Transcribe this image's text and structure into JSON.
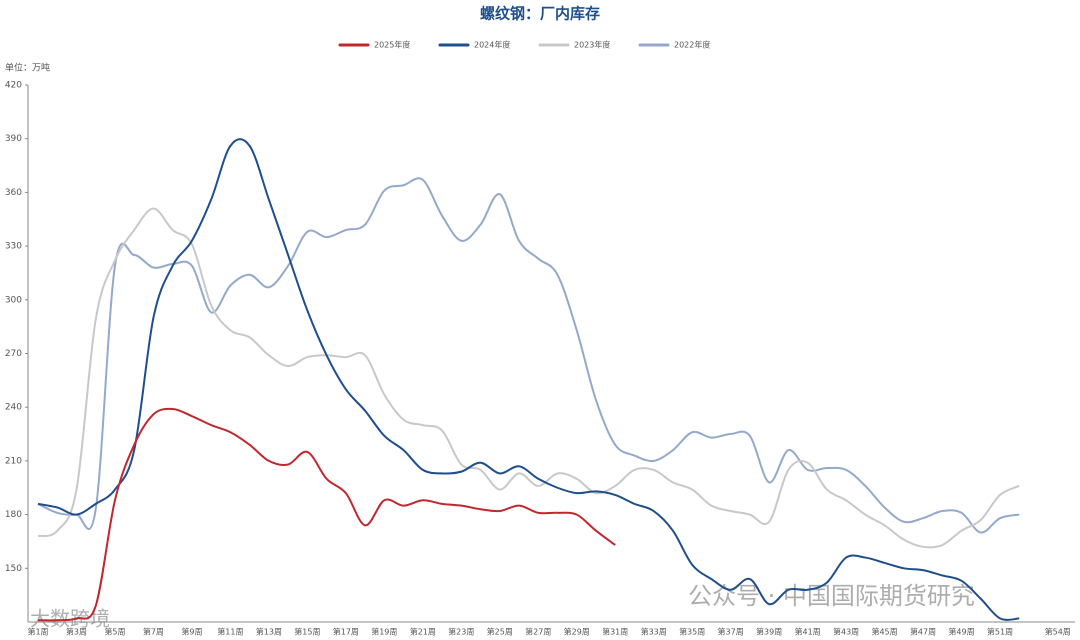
{
  "chart_data": {
    "type": "line",
    "title": "螺纹钢：厂内库存",
    "unit_label": "单位：万吨",
    "annotations": [
      "公众号 · 中国国际期货研究",
      "大数跨境"
    ],
    "categories": [
      "第1周",
      null,
      "第3周",
      null,
      "第5周",
      null,
      "第7周",
      null,
      "第9周",
      null,
      "第11周",
      null,
      "第13周",
      null,
      "第15周",
      null,
      "第17周",
      null,
      "第19周",
      null,
      "第21周",
      null,
      "第23周",
      null,
      "第25周",
      null,
      "第27周",
      null,
      "第29周",
      null,
      "第31周",
      null,
      "第33周",
      null,
      "第35周",
      null,
      "第37周",
      null,
      "第39周",
      null,
      "第41周",
      null,
      "第43周",
      null,
      "第45周",
      null,
      "第47周",
      null,
      "第49周",
      null,
      "第51周",
      null,
      null,
      "第54周"
    ],
    "ylim": [
      120,
      420
    ],
    "yticks": [
      150,
      180,
      210,
      240,
      270,
      300,
      330,
      360,
      390,
      420
    ],
    "grid": false,
    "legend": "top",
    "series": [
      {
        "name": "2025年度",
        "color": "#c0282e",
        "values": [
          121,
          121,
          122,
          129,
          188,
          219,
          236,
          239,
          235,
          230,
          226,
          219,
          210,
          208,
          215,
          200,
          192,
          174,
          188,
          185,
          188,
          186,
          185,
          183,
          182,
          185,
          181,
          181,
          180,
          171,
          163,
          null,
          null,
          null,
          null,
          null,
          null,
          null,
          null,
          null,
          null,
          null,
          null,
          null,
          null,
          null,
          null,
          null,
          null,
          null,
          null,
          null,
          null,
          null
        ]
      },
      {
        "name": "2024年度",
        "color": "#1f4e8c",
        "values": [
          186,
          184,
          180,
          186,
          194,
          216,
          290,
          319,
          333,
          356,
          386,
          386,
          356,
          325,
          294,
          269,
          250,
          238,
          224,
          216,
          205,
          203,
          204,
          209,
          203,
          207,
          200,
          195,
          192,
          193,
          191,
          186,
          182,
          171,
          152,
          144,
          138,
          144,
          130,
          138,
          138,
          142,
          156,
          156,
          153,
          150,
          149,
          146,
          143,
          133,
          122,
          122,
          null,
          null
        ]
      },
      {
        "name": "2023年度",
        "color": "#c8c8c8",
        "values": [
          168,
          171,
          194,
          289,
          322,
          339,
          351,
          339,
          331,
          297,
          283,
          279,
          269,
          263,
          268,
          269,
          268,
          269,
          247,
          233,
          230,
          227,
          208,
          205,
          194,
          203,
          196,
          203,
          200,
          192,
          196,
          205,
          205,
          198,
          194,
          185,
          182,
          180,
          176,
          205,
          209,
          194,
          188,
          180,
          174,
          166,
          162,
          163,
          171,
          177,
          191,
          196,
          null,
          null
        ]
      },
      {
        "name": "2022年度",
        "color": "#93a9cc",
        "values": [
          186,
          181,
          180,
          183,
          319,
          325,
          318,
          320,
          319,
          293,
          308,
          314,
          307,
          319,
          338,
          335,
          339,
          342,
          361,
          364,
          367,
          347,
          333,
          342,
          359,
          333,
          323,
          314,
          283,
          244,
          219,
          213,
          210,
          216,
          226,
          223,
          225,
          224,
          198,
          216,
          205,
          206,
          205,
          196,
          184,
          176,
          178,
          182,
          181,
          170,
          178,
          180,
          null,
          null
        ]
      }
    ]
  }
}
